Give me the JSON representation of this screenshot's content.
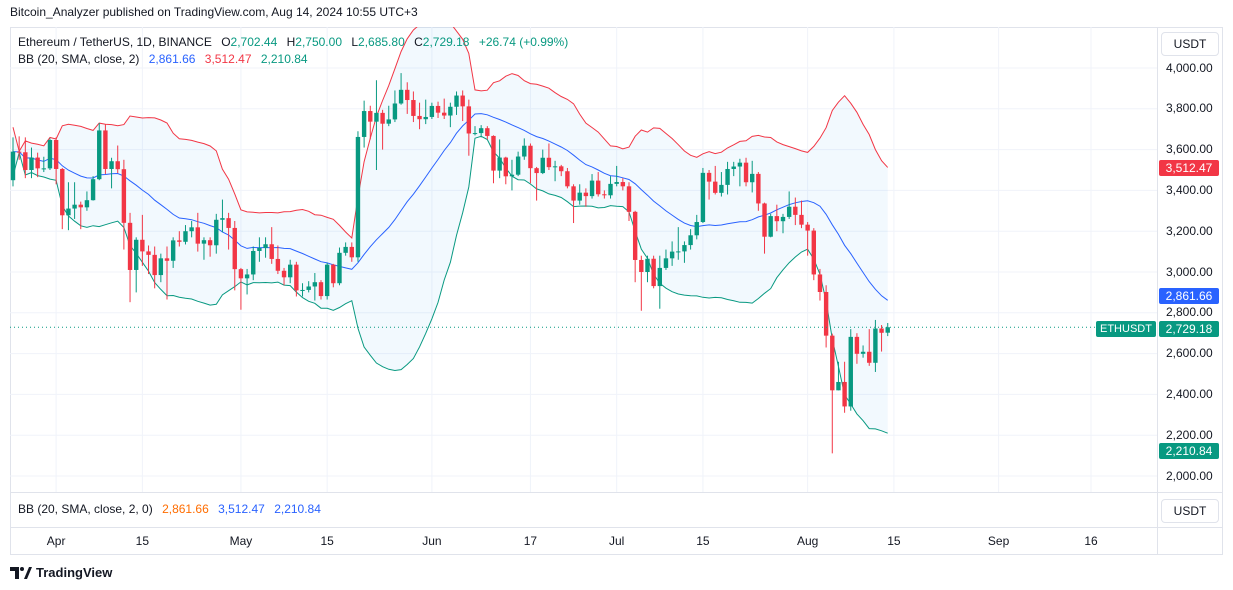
{
  "header": {
    "published": "Bitcoin_Analyzer published on TradingView.com, Aug 14, 2024 10:55 UTC+3"
  },
  "legend": {
    "symbol": "Ethereum / TetherUS, 1D, BINANCE",
    "o_label": "O",
    "o": "2,702.44",
    "h_label": "H",
    "h": "2,750.00",
    "l_label": "L",
    "l": "2,685.80",
    "c_label": "C",
    "c": "2,729.18",
    "change": "+26.74 (+0.99%)"
  },
  "bb": {
    "label": "BB (20, SMA, close, 2)",
    "basis": "2,861.66",
    "upper": "3,512.47",
    "lower": "2,210.84"
  },
  "lower_pane": {
    "label": "BB (20, SMA, close, 2, 0)",
    "basis": "2,861.66",
    "upper": "3,512.47",
    "lower": "2,210.84",
    "unit": "USDT"
  },
  "price_axis": {
    "unit": "USDT",
    "ticks": [
      "4,000.00",
      "3,800.00",
      "3,600.00",
      "3,400.00",
      "3,200.00",
      "3,000.00",
      "2,800.00",
      "2,600.00",
      "2,400.00",
      "2,200.00",
      "2,000.00"
    ]
  },
  "price_labels": {
    "upper": "3,512.47",
    "basis": "2,861.66",
    "last": "2,729.18",
    "lower": "2,210.84",
    "symbol": "ETHUSDT"
  },
  "footer": {
    "brand": "TradingView"
  },
  "colors": {
    "up": "#089981",
    "down": "#f23645",
    "bb_upper": "#f23645",
    "bb_basis": "#2962ff",
    "bb_lower": "#089981"
  },
  "chart_data": {
    "type": "candlestick",
    "indicator": "Bollinger Bands (20, SMA, close, 2)",
    "ylim": [
      1900,
      4100
    ],
    "grid": true,
    "time_axis": [
      {
        "label": "Apr",
        "date": "2024-04-01"
      },
      {
        "label": "15",
        "date": "2024-04-15"
      },
      {
        "label": "May",
        "date": "2024-05-01"
      },
      {
        "label": "15",
        "date": "2024-05-15"
      },
      {
        "label": "Jun",
        "date": "2024-06-01"
      },
      {
        "label": "17",
        "date": "2024-06-17"
      },
      {
        "label": "Jul",
        "date": "2024-07-01"
      },
      {
        "label": "15",
        "date": "2024-07-15"
      },
      {
        "label": "Aug",
        "date": "2024-08-01"
      },
      {
        "label": "15",
        "date": "2024-08-15"
      },
      {
        "label": "Sep",
        "date": "2024-09-01"
      },
      {
        "label": "16",
        "date": "2024-09-16"
      }
    ],
    "candles_fields": [
      "date",
      "open",
      "high",
      "low",
      "close"
    ],
    "candles": [
      [
        "2024-03-25",
        3450,
        3660,
        3420,
        3590
      ],
      [
        "2024-03-26",
        3590,
        3665,
        3550,
        3587
      ],
      [
        "2024-03-27",
        3587,
        3660,
        3460,
        3500
      ],
      [
        "2024-03-28",
        3500,
        3610,
        3460,
        3561
      ],
      [
        "2024-03-29",
        3561,
        3585,
        3465,
        3508
      ],
      [
        "2024-03-30",
        3508,
        3565,
        3490,
        3508
      ],
      [
        "2024-03-31",
        3508,
        3655,
        3500,
        3647
      ],
      [
        "2024-04-01",
        3647,
        3660,
        3430,
        3505
      ],
      [
        "2024-04-02",
        3505,
        3510,
        3210,
        3278
      ],
      [
        "2024-04-03",
        3278,
        3440,
        3205,
        3311
      ],
      [
        "2024-04-04",
        3311,
        3440,
        3260,
        3330
      ],
      [
        "2024-04-05",
        3330,
        3345,
        3210,
        3317
      ],
      [
        "2024-04-06",
        3317,
        3395,
        3300,
        3352
      ],
      [
        "2024-04-07",
        3352,
        3470,
        3350,
        3455
      ],
      [
        "2024-04-08",
        3455,
        3730,
        3450,
        3694
      ],
      [
        "2024-04-09",
        3694,
        3725,
        3480,
        3505
      ],
      [
        "2024-04-10",
        3505,
        3560,
        3410,
        3543
      ],
      [
        "2024-04-11",
        3543,
        3620,
        3485,
        3504
      ],
      [
        "2024-04-12",
        3504,
        3550,
        3110,
        3241
      ],
      [
        "2024-04-13",
        3241,
        3290,
        2852,
        3010
      ],
      [
        "2024-04-14",
        3010,
        3170,
        2900,
        3158
      ],
      [
        "2024-04-15",
        3158,
        3280,
        3030,
        3101
      ],
      [
        "2024-04-16",
        3101,
        3130,
        2990,
        3084
      ],
      [
        "2024-04-17",
        3084,
        3125,
        2920,
        2985
      ],
      [
        "2024-04-18",
        2985,
        3090,
        2950,
        3067
      ],
      [
        "2024-04-19",
        3067,
        3125,
        2865,
        3055
      ],
      [
        "2024-04-20",
        3055,
        3170,
        3020,
        3155
      ],
      [
        "2024-04-21",
        3155,
        3200,
        3125,
        3148
      ],
      [
        "2024-04-22",
        3148,
        3230,
        3135,
        3200
      ],
      [
        "2024-04-23",
        3200,
        3250,
        3170,
        3219
      ],
      [
        "2024-04-24",
        3219,
        3290,
        3100,
        3139
      ],
      [
        "2024-04-25",
        3139,
        3170,
        3060,
        3156
      ],
      [
        "2024-04-26",
        3156,
        3170,
        3075,
        3131
      ],
      [
        "2024-04-27",
        3131,
        3285,
        3090,
        3256
      ],
      [
        "2024-04-28",
        3256,
        3355,
        3195,
        3264
      ],
      [
        "2024-04-29",
        3264,
        3290,
        3110,
        3216
      ],
      [
        "2024-04-30",
        3216,
        3250,
        2910,
        3014
      ],
      [
        "2024-05-01",
        3014,
        3020,
        2815,
        2969
      ],
      [
        "2024-05-02",
        2969,
        3015,
        2890,
        2988
      ],
      [
        "2024-05-03",
        2988,
        3125,
        2960,
        3103
      ],
      [
        "2024-05-04",
        3103,
        3170,
        3050,
        3118
      ],
      [
        "2024-05-05",
        3118,
        3170,
        3070,
        3136
      ],
      [
        "2024-05-06",
        3136,
        3220,
        3040,
        3064
      ],
      [
        "2024-05-07",
        3064,
        3130,
        2990,
        3006
      ],
      [
        "2024-05-08",
        3006,
        3020,
        2935,
        2974
      ],
      [
        "2024-05-09",
        2974,
        3060,
        2945,
        3036
      ],
      [
        "2024-05-10",
        3036,
        3050,
        2880,
        2910
      ],
      [
        "2024-05-11",
        2910,
        2945,
        2880,
        2912
      ],
      [
        "2024-05-12",
        2912,
        2955,
        2900,
        2929
      ],
      [
        "2024-05-13",
        2929,
        2995,
        2860,
        2950
      ],
      [
        "2024-05-14",
        2950,
        2960,
        2865,
        2882
      ],
      [
        "2024-05-15",
        2882,
        3045,
        2865,
        3036
      ],
      [
        "2024-05-16",
        3036,
        3040,
        2925,
        2945
      ],
      [
        "2024-05-17",
        2945,
        3120,
        2935,
        3094
      ],
      [
        "2024-05-18",
        3094,
        3145,
        3080,
        3123
      ],
      [
        "2024-05-19",
        3123,
        3145,
        3050,
        3072
      ],
      [
        "2024-05-20",
        3072,
        3690,
        3050,
        3662
      ],
      [
        "2024-05-21",
        3662,
        3840,
        3610,
        3789
      ],
      [
        "2024-05-22",
        3789,
        3815,
        3650,
        3737
      ],
      [
        "2024-05-23",
        3737,
        3940,
        3500,
        3780
      ],
      [
        "2024-05-24",
        3780,
        3795,
        3600,
        3727
      ],
      [
        "2024-05-25",
        3727,
        3815,
        3715,
        3748
      ],
      [
        "2024-05-26",
        3748,
        3890,
        3735,
        3826
      ],
      [
        "2024-05-27",
        3826,
        3975,
        3820,
        3893
      ],
      [
        "2024-05-28",
        3893,
        3930,
        3775,
        3843
      ],
      [
        "2024-05-29",
        3843,
        3885,
        3735,
        3765
      ],
      [
        "2024-05-30",
        3765,
        3830,
        3700,
        3749
      ],
      [
        "2024-05-31",
        3749,
        3845,
        3725,
        3760
      ],
      [
        "2024-06-01",
        3760,
        3830,
        3750,
        3814
      ],
      [
        "2024-06-02",
        3814,
        3835,
        3755,
        3781
      ],
      [
        "2024-06-03",
        3781,
        3850,
        3750,
        3767
      ],
      [
        "2024-06-04",
        3767,
        3830,
        3710,
        3810
      ],
      [
        "2024-06-05",
        3810,
        3885,
        3770,
        3865
      ],
      [
        "2024-06-06",
        3865,
        3890,
        3740,
        3812
      ],
      [
        "2024-06-07",
        3812,
        3845,
        3570,
        3679
      ],
      [
        "2024-06-08",
        3679,
        3715,
        3670,
        3681
      ],
      [
        "2024-06-09",
        3681,
        3720,
        3660,
        3705
      ],
      [
        "2024-06-10",
        3705,
        3715,
        3650,
        3667
      ],
      [
        "2024-06-11",
        3667,
        3670,
        3435,
        3497
      ],
      [
        "2024-06-12",
        3497,
        3650,
        3460,
        3561
      ],
      [
        "2024-06-13",
        3561,
        3565,
        3430,
        3469
      ],
      [
        "2024-06-14",
        3469,
        3550,
        3400,
        3477
      ],
      [
        "2024-06-15",
        3477,
        3590,
        3470,
        3566
      ],
      [
        "2024-06-16",
        3566,
        3655,
        3550,
        3619
      ],
      [
        "2024-06-17",
        3619,
        3630,
        3435,
        3509
      ],
      [
        "2024-06-18",
        3509,
        3515,
        3350,
        3485
      ],
      [
        "2024-06-19",
        3485,
        3600,
        3480,
        3560
      ],
      [
        "2024-06-20",
        3560,
        3630,
        3500,
        3514
      ],
      [
        "2024-06-21",
        3514,
        3545,
        3445,
        3518
      ],
      [
        "2024-06-22",
        3518,
        3525,
        3470,
        3494
      ],
      [
        "2024-06-23",
        3494,
        3510,
        3410,
        3420
      ],
      [
        "2024-06-24",
        3420,
        3430,
        3240,
        3350
      ],
      [
        "2024-06-25",
        3350,
        3430,
        3330,
        3389
      ],
      [
        "2024-06-26",
        3389,
        3410,
        3320,
        3372
      ],
      [
        "2024-06-27",
        3372,
        3480,
        3360,
        3448
      ],
      [
        "2024-06-28",
        3448,
        3490,
        3370,
        3381
      ],
      [
        "2024-06-29",
        3381,
        3400,
        3360,
        3376
      ],
      [
        "2024-06-30",
        3376,
        3470,
        3360,
        3432
      ],
      [
        "2024-07-01",
        3432,
        3520,
        3420,
        3441
      ],
      [
        "2024-07-02",
        3441,
        3460,
        3400,
        3420
      ],
      [
        "2024-07-03",
        3420,
        3440,
        3250,
        3295
      ],
      [
        "2024-07-04",
        3295,
        3300,
        2950,
        3059
      ],
      [
        "2024-07-05",
        3059,
        3080,
        2810,
        3000
      ],
      [
        "2024-07-06",
        3000,
        3080,
        2950,
        3065
      ],
      [
        "2024-07-07",
        3065,
        3080,
        2920,
        2931
      ],
      [
        "2024-07-08",
        2931,
        3080,
        2820,
        3020
      ],
      [
        "2024-07-09",
        3020,
        3110,
        3010,
        3067
      ],
      [
        "2024-07-10",
        3067,
        3150,
        3030,
        3100
      ],
      [
        "2024-07-11",
        3100,
        3220,
        3060,
        3101
      ],
      [
        "2024-07-12",
        3101,
        3150,
        3045,
        3132
      ],
      [
        "2024-07-13",
        3132,
        3210,
        3110,
        3180
      ],
      [
        "2024-07-14",
        3180,
        3280,
        3160,
        3245
      ],
      [
        "2024-07-15",
        3245,
        3510,
        3240,
        3486
      ],
      [
        "2024-07-16",
        3486,
        3500,
        3355,
        3443
      ],
      [
        "2024-07-17",
        3443,
        3520,
        3380,
        3388
      ],
      [
        "2024-07-18",
        3388,
        3490,
        3370,
        3427
      ],
      [
        "2024-07-19",
        3427,
        3540,
        3380,
        3505
      ],
      [
        "2024-07-20",
        3505,
        3540,
        3470,
        3517
      ],
      [
        "2024-07-21",
        3517,
        3555,
        3420,
        3536
      ],
      [
        "2024-07-22",
        3536,
        3560,
        3420,
        3440
      ],
      [
        "2024-07-23",
        3440,
        3545,
        3390,
        3481
      ],
      [
        "2024-07-24",
        3481,
        3490,
        3300,
        3336
      ],
      [
        "2024-07-25",
        3336,
        3340,
        3090,
        3173
      ],
      [
        "2024-07-26",
        3173,
        3285,
        3170,
        3274
      ],
      [
        "2024-07-27",
        3274,
        3330,
        3200,
        3249
      ],
      [
        "2024-07-28",
        3249,
        3285,
        3190,
        3270
      ],
      [
        "2024-07-29",
        3270,
        3395,
        3260,
        3320
      ],
      [
        "2024-07-30",
        3320,
        3365,
        3230,
        3280
      ],
      [
        "2024-07-31",
        3280,
        3350,
        3215,
        3232
      ],
      [
        "2024-08-01",
        3232,
        3245,
        3080,
        3203
      ],
      [
        "2024-08-02",
        3203,
        3215,
        2960,
        2988
      ],
      [
        "2024-08-03",
        2988,
        3015,
        2860,
        2902
      ],
      [
        "2024-08-04",
        2902,
        2935,
        2630,
        2688
      ],
      [
        "2024-08-05",
        2688,
        2698,
        2111,
        2420
      ],
      [
        "2024-08-06",
        2420,
        2560,
        2420,
        2461
      ],
      [
        "2024-08-07",
        2461,
        2560,
        2310,
        2341
      ],
      [
        "2024-08-08",
        2341,
        2720,
        2320,
        2682
      ],
      [
        "2024-08-09",
        2682,
        2700,
        2550,
        2599
      ],
      [
        "2024-08-10",
        2599,
        2640,
        2580,
        2609
      ],
      [
        "2024-08-11",
        2609,
        2720,
        2540,
        2555
      ],
      [
        "2024-08-12",
        2555,
        2765,
        2510,
        2723
      ],
      [
        "2024-08-13",
        2723,
        2740,
        2610,
        2702
      ],
      [
        "2024-08-14",
        2702.44,
        2750,
        2685.8,
        2729.18
      ]
    ]
  }
}
